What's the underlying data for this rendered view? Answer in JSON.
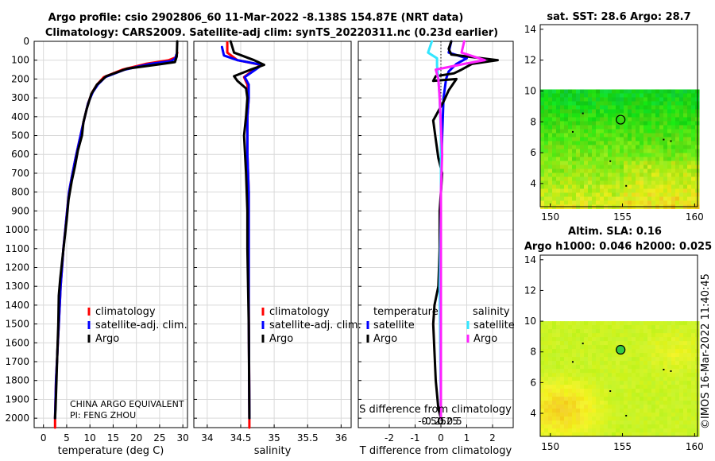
{
  "figure": {
    "title_line1": "Argo profile: csio 2902806_60 11-Mar-2022 -8.138S 154.87E (NRT data)",
    "title_line2": "Climatology: CARS2009. Satellite-adj clim: synTS_20220311.nc (0.23d earlier)",
    "credit": "CHINA ARGO EQUIVALENT",
    "pi": "PI: FENG ZHOU",
    "timestamp": "©IMOS 16-Mar-2022 11:40:45"
  },
  "colors": {
    "climatology": "#ff0000",
    "satellite": "#0000ff",
    "argo": "#000000",
    "sat_salinity": "#33e6ff",
    "argo_salinity": "#ff22ff"
  },
  "chart_data": [
    {
      "id": "temperature",
      "type": "line",
      "xlabel": "temperature (deg C)",
      "ylabel": "",
      "xlim": [
        -2,
        31
      ],
      "ylim": [
        2050,
        0
      ],
      "xticks": [
        0,
        5,
        10,
        15,
        20,
        25,
        30
      ],
      "xtick_labels": [
        "0",
        "5",
        "10",
        "15",
        "20",
        "25",
        "30"
      ],
      "yticks": [
        0,
        100,
        200,
        300,
        400,
        500,
        600,
        700,
        800,
        900,
        1000,
        1100,
        1200,
        1300,
        1400,
        1500,
        1600,
        1700,
        1800,
        1900,
        2000
      ],
      "ytick_labels": [
        "0",
        "100",
        "200",
        "300",
        "400",
        "500",
        "600",
        "700",
        "800",
        "900",
        "1000",
        "1100",
        "1200",
        "1300",
        "1400",
        "1500",
        "1600",
        "1700",
        "1800",
        "1900",
        "2000"
      ],
      "legend": [
        "climatology",
        "satellite-adj. clim.",
        "Argo"
      ],
      "series": [
        {
          "name": "climatology",
          "color": "#ff0000",
          "points": [
            [
              28.8,
              60
            ],
            [
              28.5,
              85
            ],
            [
              27,
              100
            ],
            [
              22,
              120
            ],
            [
              17,
              150
            ],
            [
              13,
              190
            ],
            [
              11.5,
              230
            ],
            [
              10.5,
              270
            ],
            [
              9.6,
              330
            ],
            [
              8.7,
              420
            ],
            [
              7.8,
              520
            ],
            [
              6.9,
              620
            ],
            [
              6.1,
              720
            ],
            [
              5.5,
              800
            ],
            [
              5.1,
              900
            ],
            [
              4.7,
              1000
            ],
            [
              4.3,
              1100
            ],
            [
              4.0,
              1200
            ],
            [
              3.7,
              1300
            ],
            [
              3.5,
              1400
            ],
            [
              3.3,
              1500
            ],
            [
              3.1,
              1600
            ],
            [
              2.9,
              1700
            ],
            [
              2.7,
              1800
            ],
            [
              2.6,
              1900
            ],
            [
              2.5,
              2000
            ],
            [
              2.5,
              2050
            ]
          ]
        },
        {
          "name": "satellite-adj. clim.",
          "color": "#0000ff",
          "points": [
            [
              28.6,
              70
            ],
            [
              28.4,
              90
            ],
            [
              27.5,
              105
            ],
            [
              23,
              120
            ],
            [
              17.5,
              150
            ],
            [
              13.3,
              190
            ],
            [
              11.7,
              230
            ],
            [
              10.6,
              270
            ],
            [
              9.6,
              330
            ],
            [
              8.7,
              420
            ],
            [
              7.8,
              520
            ],
            [
              6.9,
              620
            ],
            [
              6.1,
              720
            ],
            [
              5.5,
              800
            ],
            [
              5.1,
              900
            ],
            [
              4.7,
              1000
            ],
            [
              4.3,
              1100
            ],
            [
              4.0,
              1200
            ],
            [
              3.7,
              1300
            ],
            [
              3.5,
              1400
            ],
            [
              3.3,
              1500
            ],
            [
              3.1,
              1600
            ],
            [
              2.9,
              1700
            ],
            [
              2.7,
              1800
            ],
            [
              2.6,
              1900
            ],
            [
              2.5,
              2000
            ]
          ]
        },
        {
          "name": "Argo",
          "color": "#000000",
          "points": [
            [
              28.8,
              0
            ],
            [
              28.7,
              80
            ],
            [
              28.3,
              110
            ],
            [
              25,
              122
            ],
            [
              18,
              145
            ],
            [
              13.5,
              185
            ],
            [
              11.5,
              230
            ],
            [
              10.3,
              280
            ],
            [
              9.3,
              360
            ],
            [
              8.6,
              430
            ],
            [
              8.3,
              500
            ],
            [
              7.4,
              580
            ],
            [
              6.8,
              660
            ],
            [
              6.1,
              740
            ],
            [
              5.4,
              840
            ],
            [
              5.0,
              950
            ],
            [
              4.5,
              1060
            ],
            [
              4.0,
              1170
            ],
            [
              3.6,
              1260
            ],
            [
              3.3,
              1350
            ],
            [
              3.2,
              1500
            ],
            [
              3.0,
              1650
            ],
            [
              2.8,
              1800
            ],
            [
              2.6,
              1950
            ],
            [
              2.5,
              2000
            ]
          ]
        }
      ]
    },
    {
      "id": "salinity",
      "type": "line",
      "xlabel": "salinity",
      "xlim": [
        33.8,
        36.15
      ],
      "ylim": [
        2050,
        0
      ],
      "xticks": [
        34,
        34.5,
        35,
        35.5,
        36
      ],
      "xtick_labels": [
        "34",
        "34.5",
        "35",
        "35.5",
        "36"
      ],
      "legend": [
        "climatology",
        "satellite-adj. clim.",
        "Argo"
      ],
      "series": [
        {
          "name": "climatology",
          "color": "#ff0000",
          "points": [
            [
              34.3,
              5
            ],
            [
              34.3,
              60
            ],
            [
              34.45,
              100
            ],
            [
              34.8,
              125
            ],
            [
              34.7,
              150
            ],
            [
              34.55,
              190
            ],
            [
              34.6,
              230
            ],
            [
              34.62,
              300
            ],
            [
              34.6,
              400
            ],
            [
              34.6,
              600
            ],
            [
              34.62,
              800
            ],
            [
              34.62,
              1000
            ],
            [
              34.62,
              1400
            ],
            [
              34.63,
              2000
            ],
            [
              34.63,
              2050
            ]
          ]
        },
        {
          "name": "satellite-adj. clim.",
          "color": "#0000ff",
          "points": [
            [
              34.22,
              30
            ],
            [
              34.25,
              75
            ],
            [
              34.45,
              100
            ],
            [
              34.82,
              125
            ],
            [
              34.72,
              150
            ],
            [
              34.56,
              190
            ],
            [
              34.62,
              230
            ],
            [
              34.62,
              300
            ],
            [
              34.6,
              400
            ],
            [
              34.6,
              600
            ],
            [
              34.62,
              800
            ],
            [
              34.62,
              1000
            ],
            [
              34.62,
              1400
            ],
            [
              34.63,
              2000
            ]
          ]
        },
        {
          "name": "Argo",
          "color": "#000000",
          "points": [
            [
              34.35,
              0
            ],
            [
              34.4,
              60
            ],
            [
              34.7,
              100
            ],
            [
              34.85,
              125
            ],
            [
              34.65,
              150
            ],
            [
              34.4,
              185
            ],
            [
              34.45,
              210
            ],
            [
              34.58,
              250
            ],
            [
              34.6,
              300
            ],
            [
              34.58,
              400
            ],
            [
              34.55,
              500
            ],
            [
              34.58,
              700
            ],
            [
              34.6,
              900
            ],
            [
              34.6,
              1100
            ],
            [
              34.62,
              1500
            ],
            [
              34.63,
              2000
            ]
          ]
        }
      ]
    },
    {
      "id": "difference",
      "type": "line",
      "xlabel": "T difference from climatology",
      "top_xlabel": "S difference from climatology",
      "xlim": [
        -3.2,
        2.8
      ],
      "ylim": [
        2050,
        0
      ],
      "xticks": [
        -2,
        -1,
        0,
        1,
        2
      ],
      "xtick_labels": [
        "-2",
        "-1",
        "0",
        "1",
        "2"
      ],
      "s_ticks": [
        -0.5,
        -0.25,
        0,
        0.25,
        0.5
      ],
      "s_tick_labels": [
        "-0.5",
        "-0.25",
        "0",
        "0.25",
        "0.5"
      ],
      "legend_temperature_title": "temperature",
      "legend_salinity_title": "salinity",
      "legend_temperature": [
        "satellite",
        "Argo"
      ],
      "legend_salinity": [
        "satellite",
        "Argo"
      ],
      "series": [
        {
          "name": "T satellite",
          "color": "#0000ff",
          "points": [
            [
              0.4,
              0
            ],
            [
              0.3,
              60
            ],
            [
              1.0,
              90
            ],
            [
              0.6,
              120
            ],
            [
              0.3,
              160
            ],
            [
              0.2,
              200
            ],
            [
              0.1,
              300
            ],
            [
              0.05,
              500
            ],
            [
              0,
              800
            ],
            [
              0,
              1200
            ],
            [
              0,
              1600
            ],
            [
              0,
              2000
            ]
          ]
        },
        {
          "name": "T Argo",
          "color": "#000000",
          "points": [
            [
              0.4,
              0
            ],
            [
              0.3,
              40
            ],
            [
              0.4,
              70
            ],
            [
              2.2,
              100
            ],
            [
              1.2,
              120
            ],
            [
              0.8,
              150
            ],
            [
              0.5,
              170
            ],
            [
              -0.2,
              185
            ],
            [
              -0.3,
              210
            ],
            [
              0.6,
              200
            ],
            [
              0.3,
              260
            ],
            [
              0.1,
              320
            ],
            [
              -0.3,
              420
            ],
            [
              -0.2,
              520
            ],
            [
              -0.1,
              620
            ],
            [
              0.05,
              700
            ],
            [
              -0.05,
              900
            ],
            [
              -0.05,
              1100
            ],
            [
              -0.1,
              1300
            ],
            [
              -0.25,
              1400
            ],
            [
              -0.3,
              1500
            ],
            [
              -0.25,
              1650
            ],
            [
              -0.2,
              1800
            ],
            [
              -0.1,
              1950
            ],
            [
              0,
              2000
            ]
          ]
        },
        {
          "name": "S satellite",
          "color": "#33e6ff",
          "points": [
            [
              -0.35,
              0
            ],
            [
              -0.5,
              60
            ],
            [
              -0.15,
              90
            ],
            [
              -0.15,
              130
            ],
            [
              -0.1,
              200
            ],
            [
              -0.05,
              300
            ],
            [
              0,
              500
            ],
            [
              0,
              900
            ],
            [
              -0.05,
              1300
            ],
            [
              0,
              2000
            ]
          ]
        },
        {
          "name": "S Argo",
          "color": "#ff22ff",
          "points": [
            [
              0.9,
              0
            ],
            [
              0.8,
              60
            ],
            [
              1.7,
              100
            ],
            [
              0.9,
              120
            ],
            [
              -0.2,
              150
            ],
            [
              -0.1,
              200
            ],
            [
              -0.05,
              300
            ],
            [
              0,
              450
            ],
            [
              0.05,
              600
            ],
            [
              0,
              800
            ],
            [
              0,
              1100
            ],
            [
              0,
              1600
            ],
            [
              0,
              2000
            ]
          ]
        }
      ]
    },
    {
      "id": "sst_map",
      "type": "heatmap",
      "title": "sat. SST: 28.6 Argo: 28.7",
      "xlim": [
        149.3,
        160.2
      ],
      "ylim": [
        2.5,
        14.3
      ],
      "xticks": [
        150,
        155,
        160
      ],
      "xtick_labels": [
        "150",
        "155",
        "160"
      ],
      "yticks": [
        4,
        6,
        8,
        10,
        12,
        14
      ],
      "ytick_labels": [
        "4",
        "6",
        "8",
        "10",
        "12",
        "14"
      ],
      "data_top_lat": 10.1,
      "argo_position": [
        154.87,
        8.14
      ]
    },
    {
      "id": "sla_map",
      "type": "heatmap",
      "title": "Altim. SLA: 0.16",
      "subtitle": "Argo h1000: 0.046 h2000: 0.025",
      "xlim": [
        149.3,
        160.2
      ],
      "ylim": [
        2.5,
        14.3
      ],
      "xticks": [
        150,
        155,
        160
      ],
      "xtick_labels": [
        "150",
        "155",
        "160"
      ],
      "yticks": [
        4,
        6,
        8,
        10,
        12,
        14
      ],
      "ytick_labels": [
        "4",
        "6",
        "8",
        "10",
        "12",
        "14"
      ],
      "data_top_lat": 10.0,
      "argo_position": [
        154.87,
        8.14
      ]
    }
  ]
}
